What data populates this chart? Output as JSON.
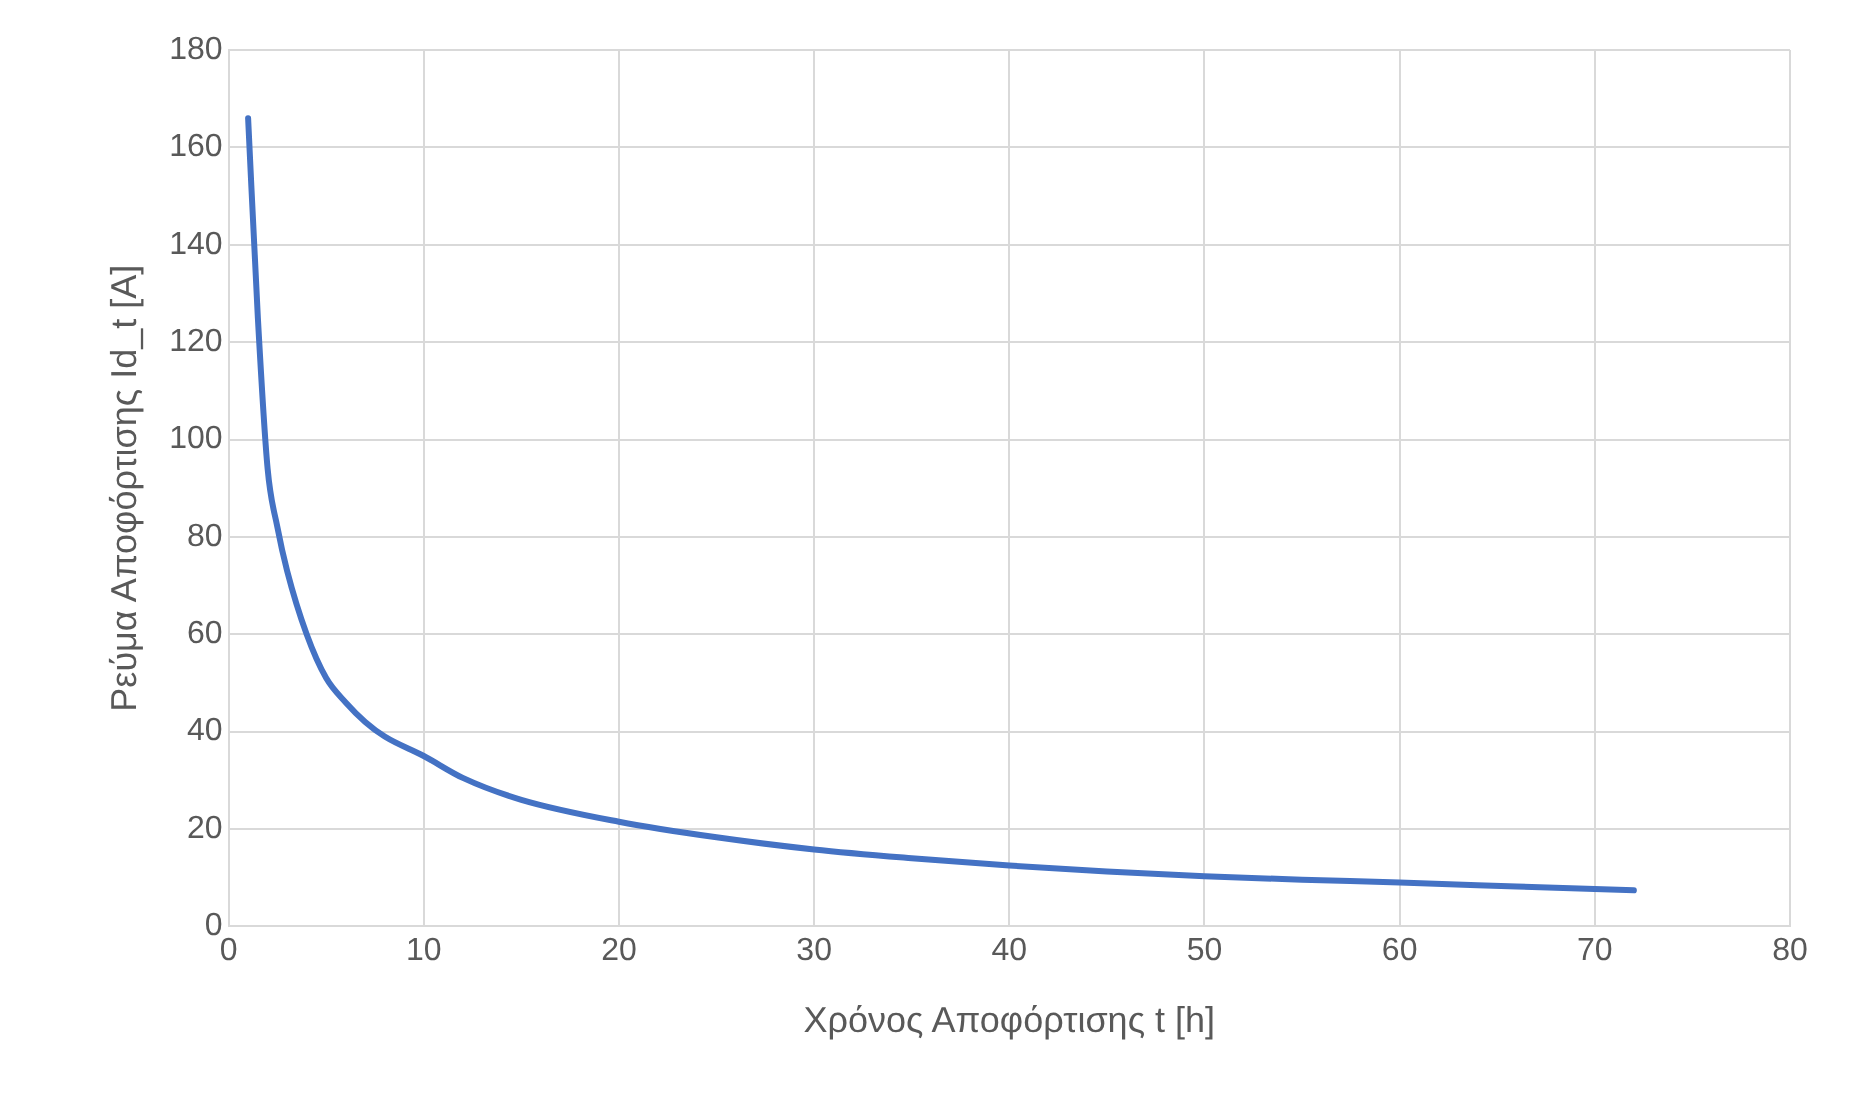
{
  "chart_data": {
    "type": "line",
    "xlabel": "Χρόνος Αποφόρτισης t [h]",
    "ylabel": "Ρεύμα Αποφόρτισης Id_t [A]",
    "x": [
      1,
      1.5,
      2,
      2.5,
      3,
      4,
      5,
      6,
      7,
      8,
      10,
      12,
      15,
      20,
      25,
      30,
      35,
      40,
      45,
      50,
      55,
      60,
      66,
      72
    ],
    "series": [
      {
        "color": "#4472c4",
        "values": [
          166,
          125,
          94,
          82,
          73,
          60,
          51,
          46,
          42,
          39,
          35,
          30.5,
          26,
          21.5,
          18.3,
          15.8,
          14,
          12.5,
          11.3,
          10.3,
          9.6,
          9,
          8.2,
          7.4
        ]
      }
    ],
    "xlim": [
      0,
      80
    ],
    "xticks": [
      0,
      10,
      20,
      30,
      40,
      50,
      60,
      70,
      80
    ],
    "ylim": [
      0,
      180
    ],
    "yticks": [
      0,
      20,
      40,
      60,
      80,
      100,
      120,
      140,
      160,
      180
    ],
    "grid": true,
    "marker": "none",
    "line_style": "solid",
    "legend": false
  }
}
